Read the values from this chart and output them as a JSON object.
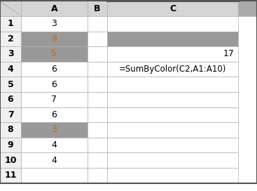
{
  "col_headers": [
    "A",
    "B",
    "C"
  ],
  "row_numbers": [
    "1",
    "2",
    "3",
    "4",
    "5",
    "6",
    "7",
    "8",
    "9",
    "10",
    "11"
  ],
  "col_a_values": [
    "3",
    "9",
    "5",
    "6",
    "6",
    "7",
    "6",
    "3",
    "4",
    "4",
    ""
  ],
  "col_a_highlight": [
    false,
    true,
    true,
    false,
    false,
    false,
    false,
    true,
    false,
    false,
    false
  ],
  "c2_fill": "#999999",
  "c3_value": "17",
  "c4_formula": "=SumByColor(C2,A1:A10)",
  "highlight_color": "#999999",
  "highlight_text_color": "#cc6600",
  "normal_text_color": "#000000",
  "header_bg": "#d4d4d4",
  "row_header_bg": "#f0f0f0",
  "cell_bg": "#ffffff",
  "grid_color": "#b0b0b0",
  "outer_border": "#555555",
  "corner_gray": "#aaaaaa",
  "green_line": "#008000",
  "fig_width": 3.67,
  "fig_height": 2.72,
  "b_border_rows": 6
}
